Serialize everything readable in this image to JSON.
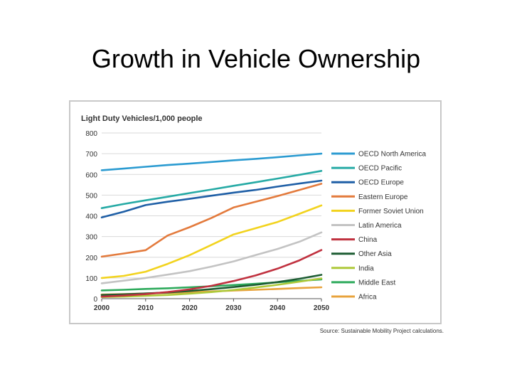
{
  "slide": {
    "title": "Growth in Vehicle Ownership"
  },
  "chart_data": {
    "type": "line",
    "title": "Light Duty Vehicles/1,000 people",
    "xlabel": "",
    "ylabel": "",
    "x": [
      2000,
      2005,
      2010,
      2015,
      2020,
      2025,
      2030,
      2035,
      2040,
      2045,
      2050
    ],
    "xticks": [
      2000,
      2010,
      2020,
      2030,
      2040,
      2050
    ],
    "yticks": [
      0,
      100,
      200,
      300,
      400,
      500,
      600,
      700,
      800
    ],
    "xlim": [
      2000,
      2050
    ],
    "ylim": [
      0,
      800
    ],
    "grid": "horizontal",
    "legend": "right",
    "series": [
      {
        "name": "OECD North America",
        "color": "#2b9bd1",
        "values": [
          620,
          628,
          637,
          645,
          652,
          660,
          668,
          675,
          683,
          692,
          700
        ]
      },
      {
        "name": "OECD Pacific",
        "color": "#26aaa5",
        "values": [
          437,
          457,
          475,
          492,
          510,
          527,
          545,
          562,
          580,
          598,
          617
        ]
      },
      {
        "name": "OECD Europe",
        "color": "#1f5fa6",
        "values": [
          392,
          420,
          452,
          468,
          482,
          497,
          512,
          525,
          541,
          556,
          570
        ]
      },
      {
        "name": "Eastern Europe",
        "color": "#e37a3c",
        "values": [
          203,
          218,
          234,
          305,
          345,
          390,
          440,
          468,
          495,
          525,
          555
        ]
      },
      {
        "name": "Former Soviet Union",
        "color": "#f2d31e",
        "values": [
          100,
          110,
          130,
          168,
          210,
          260,
          310,
          340,
          370,
          410,
          450
        ]
      },
      {
        "name": "Latin America",
        "color": "#c3c3c3",
        "values": [
          74,
          87,
          100,
          116,
          133,
          155,
          180,
          210,
          240,
          275,
          320
        ]
      },
      {
        "name": "China",
        "color": "#c0313f",
        "values": [
          10,
          15,
          22,
          32,
          45,
          62,
          85,
          112,
          145,
          185,
          235
        ]
      },
      {
        "name": "Other Asia",
        "color": "#1c5c32",
        "values": [
          18,
          21,
          25,
          30,
          37,
          46,
          56,
          67,
          80,
          96,
          115
        ]
      },
      {
        "name": "India",
        "color": "#aec93a",
        "values": [
          8,
          10,
          14,
          18,
          24,
          32,
          42,
          54,
          67,
          82,
          98
        ]
      },
      {
        "name": "Middle East",
        "color": "#2eaa5c",
        "values": [
          40,
          43,
          47,
          50,
          55,
          60,
          66,
          72,
          79,
          86,
          93
        ]
      },
      {
        "name": "Africa",
        "color": "#e8a33c",
        "values": [
          20,
          22,
          25,
          28,
          31,
          35,
          39,
          43,
          47,
          51,
          55
        ]
      }
    ],
    "source": "Source: Sustainable Mobility Project calculations."
  }
}
